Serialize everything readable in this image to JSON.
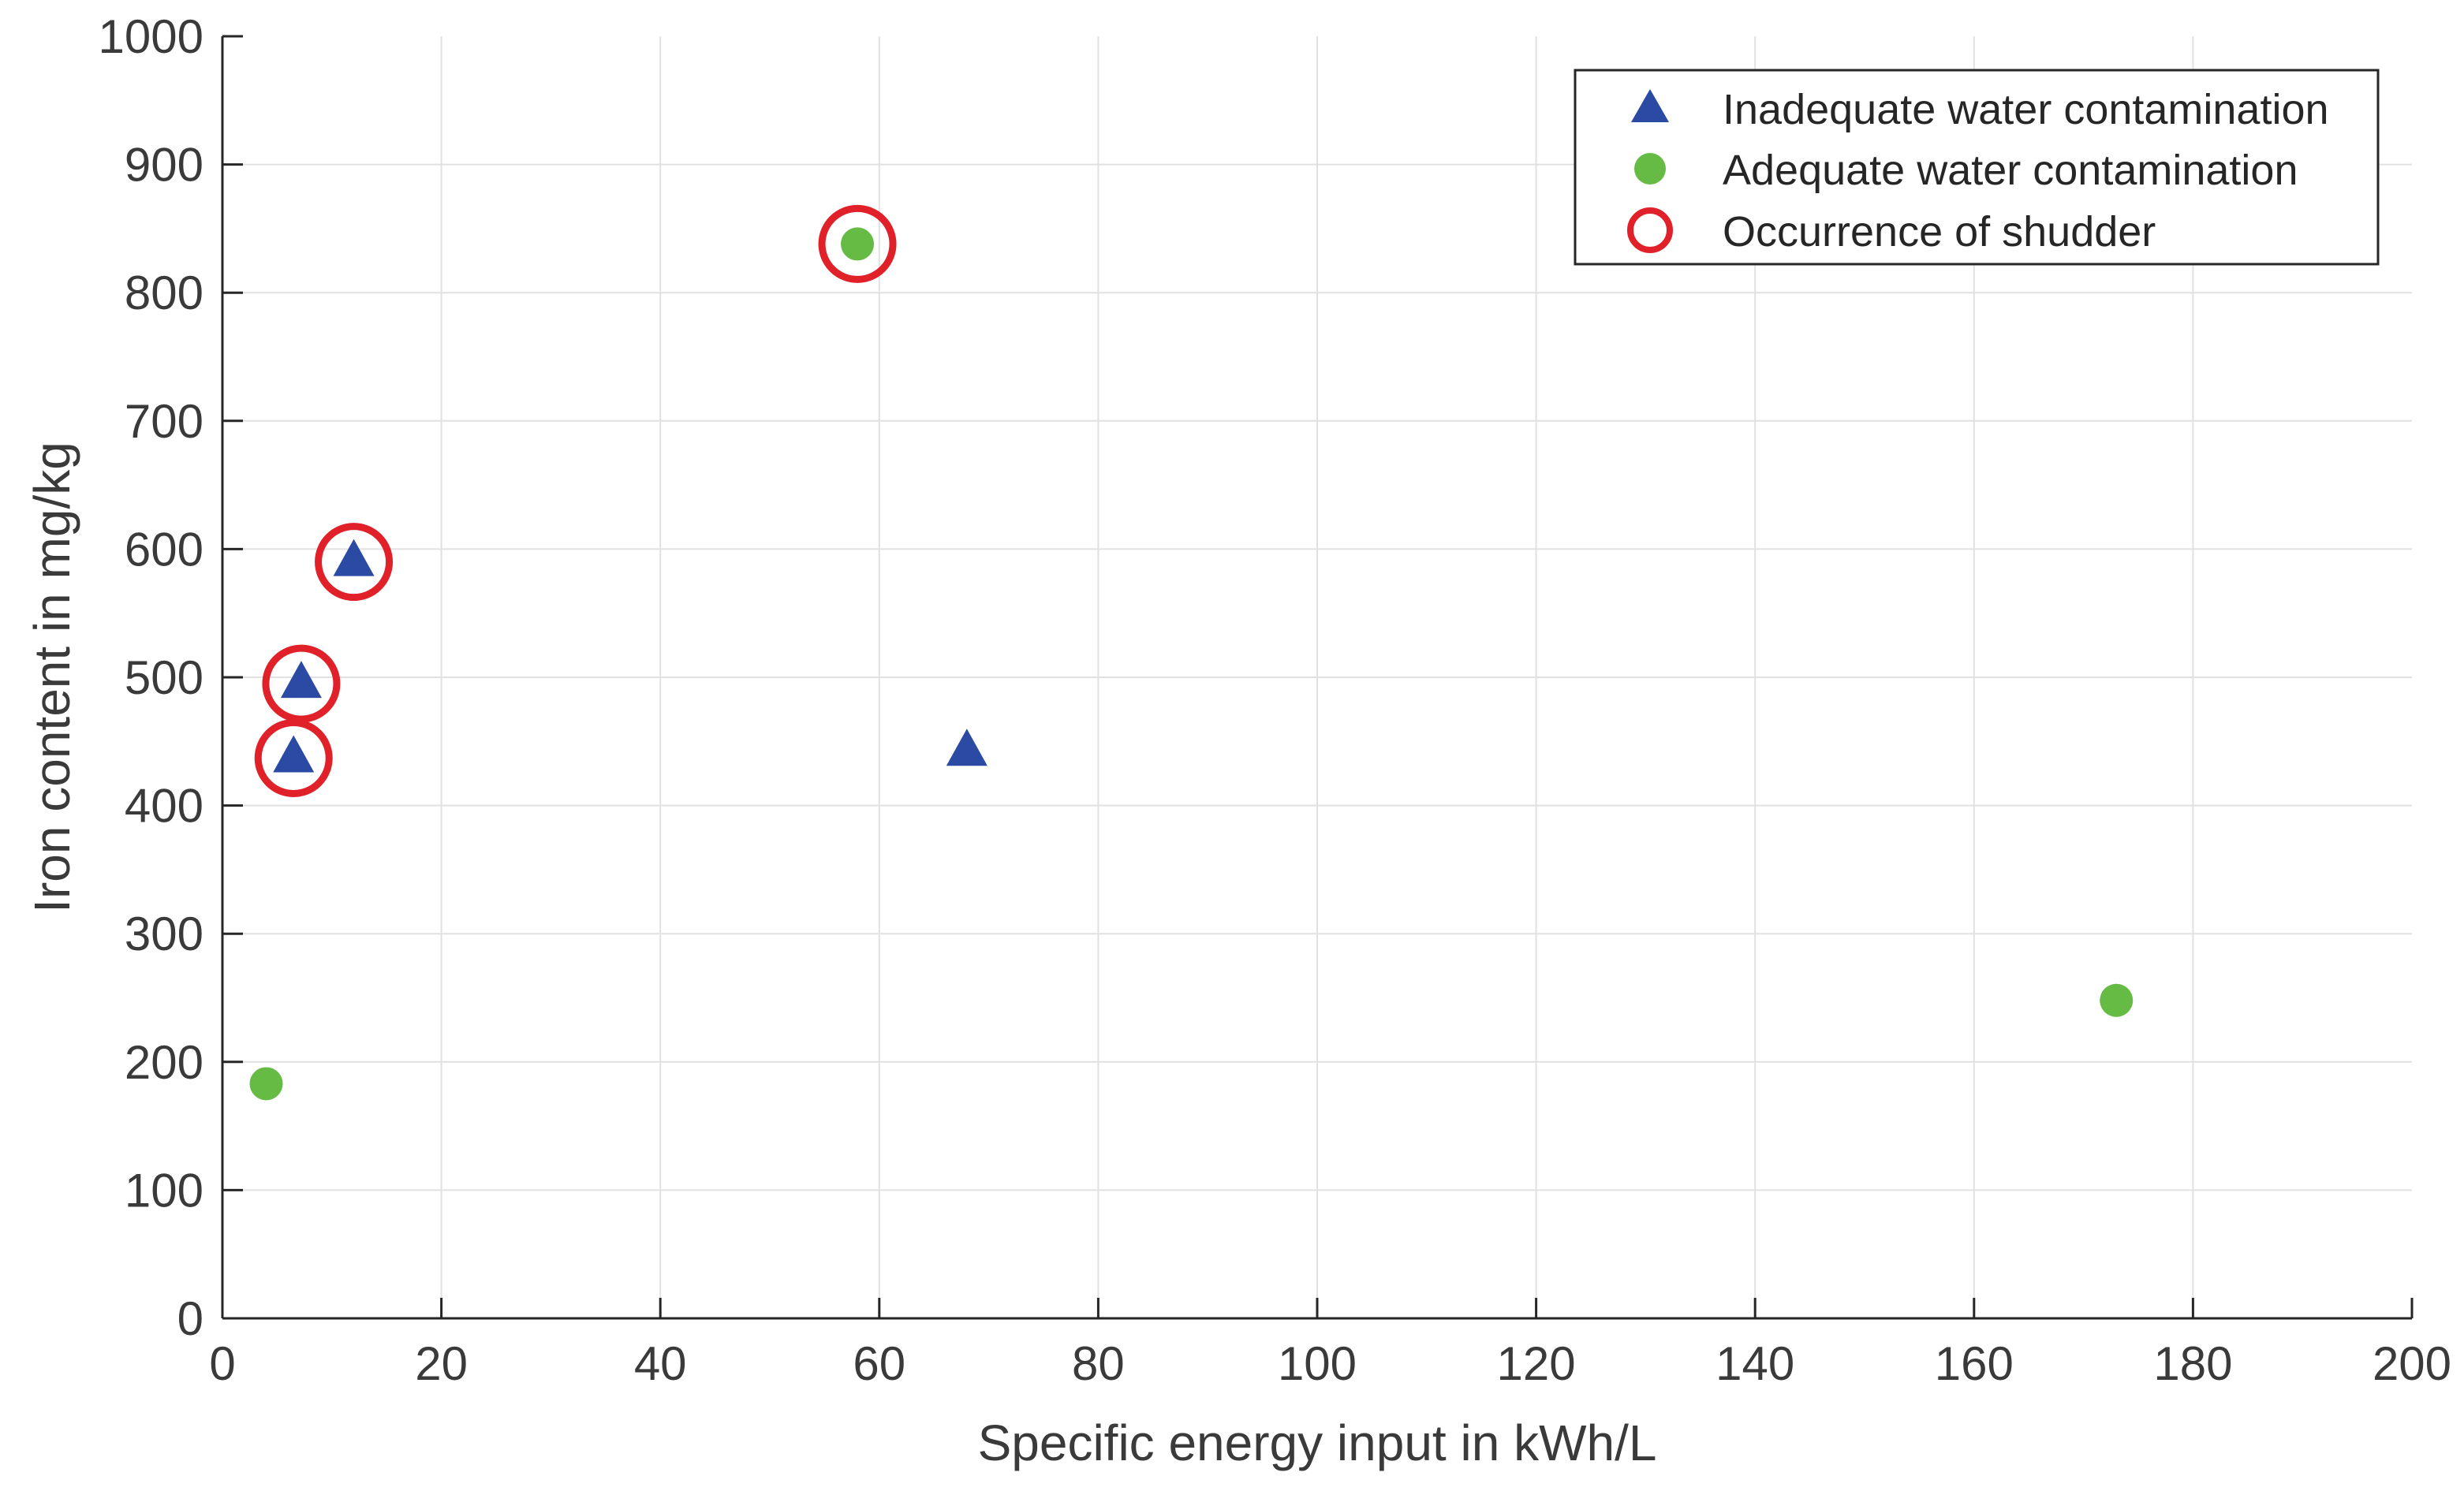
{
  "chart_data": {
    "type": "scatter",
    "title": "",
    "xlabel": "Specific energy input in kWh/L",
    "ylabel": "Iron content in mg/kg",
    "xlim": [
      0,
      200
    ],
    "ylim": [
      0,
      1000
    ],
    "xticks": [
      0,
      20,
      40,
      60,
      80,
      100,
      120,
      140,
      160,
      180,
      200
    ],
    "yticks": [
      0,
      100,
      200,
      300,
      400,
      500,
      600,
      700,
      800,
      900,
      1000
    ],
    "grid": true,
    "legend_position": "top-right",
    "series": [
      {
        "name": "Inadequate water contamination",
        "marker": "triangle",
        "color": "#2b4aa3",
        "points": [
          {
            "x": 6.5,
            "y": 437
          },
          {
            "x": 7.2,
            "y": 495
          },
          {
            "x": 12.0,
            "y": 590
          },
          {
            "x": 68.0,
            "y": 442
          }
        ]
      },
      {
        "name": "Adequate water contamination",
        "marker": "circle",
        "color": "#66bb44",
        "points": [
          {
            "x": 4.0,
            "y": 183
          },
          {
            "x": 58.0,
            "y": 838
          },
          {
            "x": 173.0,
            "y": 248
          }
        ]
      },
      {
        "name": "Occurrence of shudder",
        "marker": "ring",
        "color": "#e02129",
        "points": [
          {
            "x": 6.5,
            "y": 437
          },
          {
            "x": 7.2,
            "y": 495
          },
          {
            "x": 12.0,
            "y": 590
          },
          {
            "x": 58.0,
            "y": 838
          }
        ]
      }
    ]
  }
}
